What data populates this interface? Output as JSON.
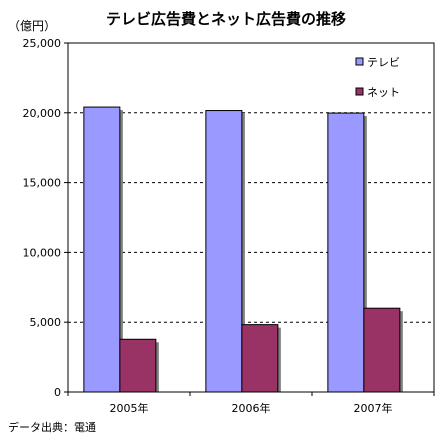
{
  "chart_data": {
    "type": "bar",
    "title": "テレビ広告費とネット広告費の推移",
    "unit_label": "（億円）",
    "categories": [
      "2005年",
      "2006年",
      "2007年"
    ],
    "series": [
      {
        "name": "テレビ",
        "values": [
          20411,
          20161,
          19981
        ],
        "color": "#9999ff"
      },
      {
        "name": "ネット",
        "values": [
          3777,
          4826,
          6003
        ],
        "color": "#993366"
      }
    ],
    "ylim": [
      0,
      25000
    ],
    "yticks": [
      "0",
      "5,000",
      "10,000",
      "15,000",
      "20,000",
      "25,000"
    ],
    "ytick_values": [
      0,
      5000,
      10000,
      15000,
      20000,
      25000
    ],
    "grid": true,
    "legend_position": "top-right",
    "source": "データ出典：電通"
  }
}
